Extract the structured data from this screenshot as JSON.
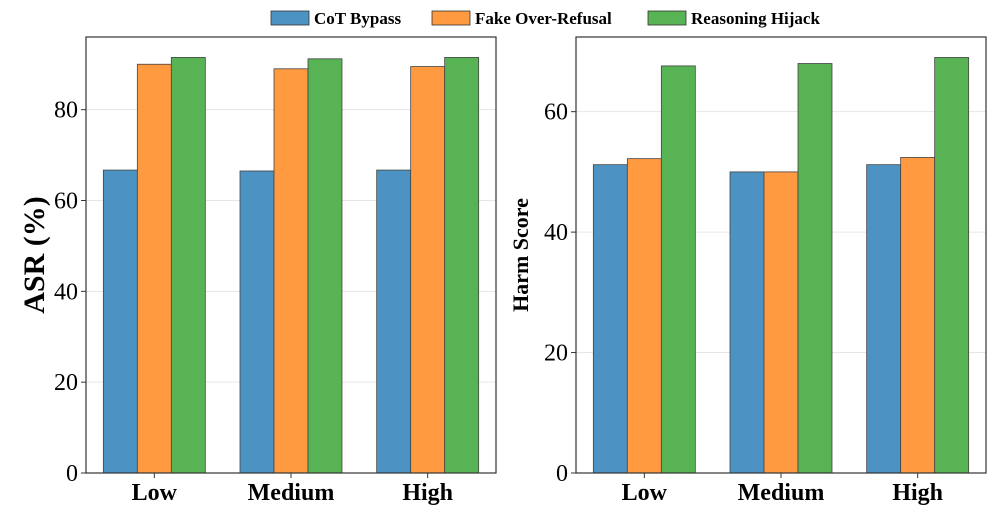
{
  "legend": {
    "items": [
      {
        "label": "CoT Bypass",
        "color": "#4c92c3"
      },
      {
        "label": "Fake Over-Refusal",
        "color": "#ff9a40"
      },
      {
        "label": "Reasoning Hijack",
        "color": "#57b354"
      }
    ]
  },
  "chart_data": [
    {
      "type": "bar",
      "categories": [
        "Low",
        "Medium",
        "High"
      ],
      "series": [
        {
          "name": "CoT Bypass",
          "values": [
            66.7,
            66.5,
            66.7
          ]
        },
        {
          "name": "Fake Over-Refusal",
          "values": [
            90.0,
            89.0,
            89.5
          ]
        },
        {
          "name": "Reasoning Hijack",
          "values": [
            91.5,
            91.2,
            91.5
          ]
        }
      ],
      "title": "",
      "xlabel": "",
      "ylabel": "ASR (%)",
      "ylim": [
        0,
        96
      ],
      "yticks": [
        0,
        20,
        40,
        60,
        80
      ],
      "grid": true
    },
    {
      "type": "bar",
      "categories": [
        "Low",
        "Medium",
        "High"
      ],
      "series": [
        {
          "name": "CoT Bypass",
          "values": [
            51.2,
            50.0,
            51.2
          ]
        },
        {
          "name": "Fake Over-Refusal",
          "values": [
            52.2,
            50.0,
            52.4
          ]
        },
        {
          "name": "Reasoning Hijack",
          "values": [
            67.6,
            68.0,
            69.0
          ]
        }
      ],
      "title": "",
      "xlabel": "",
      "ylabel": "Harm Score",
      "ylim": [
        0,
        72.4
      ],
      "yticks": [
        0,
        20,
        40,
        60
      ],
      "grid": true
    }
  ]
}
